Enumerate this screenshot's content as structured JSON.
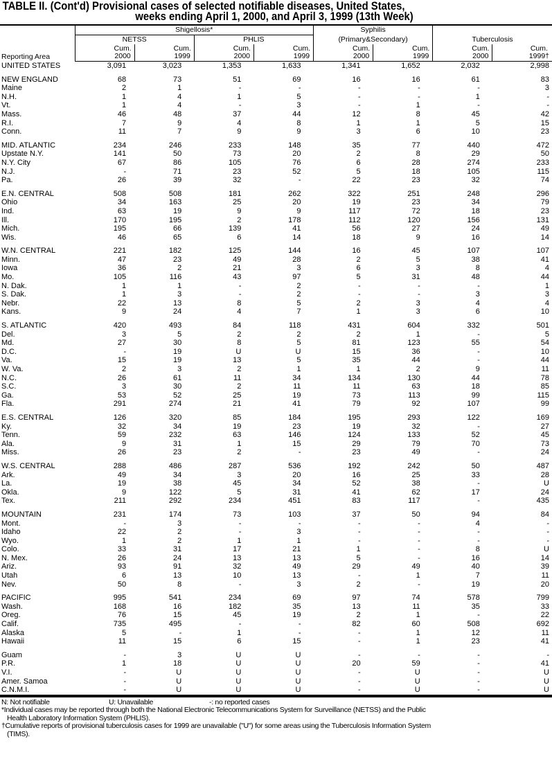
{
  "title": {
    "line1": "TABLE II. (Cont'd) Provisional cases of selected notifiable diseases, United States,",
    "line2": "weeks ending April 1, 2000, and April 3, 1999 (13th Week)"
  },
  "header": {
    "reporting_area": "Reporting Area",
    "shigellosis": "Shigellosis*",
    "netss": "NETSS",
    "phlis": "PHLIS",
    "syphilis": "Syphilis",
    "syphilis_sub": "(Primary&Secondary)",
    "tuberculosis": "Tuberculosis",
    "cols": [
      {
        "cum": "Cum.",
        "year": "2000"
      },
      {
        "cum": "Cum.",
        "year": "1999"
      },
      {
        "cum": "Cum.",
        "year": "2000"
      },
      {
        "cum": "Cum.",
        "year": "1999"
      },
      {
        "cum": "Cum.",
        "year": "2000"
      },
      {
        "cum": "Cum.",
        "year": "1999"
      },
      {
        "cum": "Cum.",
        "year": "2000"
      },
      {
        "cum": "Cum.",
        "year": "1999†"
      }
    ]
  },
  "groups": [
    [
      [
        "UNITED STATES",
        "3,091",
        "3,023",
        "1,353",
        "1,633",
        "1,341",
        "1,652",
        "2,032",
        "2,998"
      ]
    ],
    [
      [
        "NEW ENGLAND",
        "68",
        "73",
        "51",
        "69",
        "16",
        "16",
        "61",
        "83"
      ],
      [
        "Maine",
        "2",
        "1",
        "-",
        "-",
        "-",
        "-",
        "-",
        "3"
      ],
      [
        "N.H.",
        "1",
        "4",
        "1",
        "5",
        "-",
        "-",
        "1",
        "-"
      ],
      [
        "Vt.",
        "1",
        "4",
        "-",
        "3",
        "-",
        "1",
        "-",
        "-"
      ],
      [
        "Mass.",
        "46",
        "48",
        "37",
        "44",
        "12",
        "8",
        "45",
        "42"
      ],
      [
        "R.I.",
        "7",
        "9",
        "4",
        "8",
        "1",
        "1",
        "5",
        "15"
      ],
      [
        "Conn.",
        "11",
        "7",
        "9",
        "9",
        "3",
        "6",
        "10",
        "23"
      ]
    ],
    [
      [
        "MID. ATLANTIC",
        "234",
        "246",
        "233",
        "148",
        "35",
        "77",
        "440",
        "472"
      ],
      [
        "Upstate N.Y.",
        "141",
        "50",
        "73",
        "20",
        "2",
        "8",
        "29",
        "50"
      ],
      [
        "N.Y. City",
        "67",
        "86",
        "105",
        "76",
        "6",
        "28",
        "274",
        "233"
      ],
      [
        "N.J.",
        "-",
        "71",
        "23",
        "52",
        "5",
        "18",
        "105",
        "115"
      ],
      [
        "Pa.",
        "26",
        "39",
        "32",
        "-",
        "22",
        "23",
        "32",
        "74"
      ]
    ],
    [
      [
        "E.N. CENTRAL",
        "508",
        "508",
        "181",
        "262",
        "322",
        "251",
        "248",
        "296"
      ],
      [
        "Ohio",
        "34",
        "163",
        "25",
        "20",
        "19",
        "23",
        "34",
        "79"
      ],
      [
        "Ind.",
        "63",
        "19",
        "9",
        "9",
        "117",
        "72",
        "18",
        "23"
      ],
      [
        "Ill.",
        "170",
        "195",
        "2",
        "178",
        "112",
        "120",
        "156",
        "131"
      ],
      [
        "Mich.",
        "195",
        "66",
        "139",
        "41",
        "56",
        "27",
        "24",
        "49"
      ],
      [
        "Wis.",
        "46",
        "65",
        "6",
        "14",
        "18",
        "9",
        "16",
        "14"
      ]
    ],
    [
      [
        "W.N. CENTRAL",
        "221",
        "182",
        "125",
        "144",
        "16",
        "45",
        "107",
        "107"
      ],
      [
        "Minn.",
        "47",
        "23",
        "49",
        "28",
        "2",
        "5",
        "38",
        "41"
      ],
      [
        "Iowa",
        "36",
        "2",
        "21",
        "3",
        "6",
        "3",
        "8",
        "4"
      ],
      [
        "Mo.",
        "105",
        "116",
        "43",
        "97",
        "5",
        "31",
        "48",
        "44"
      ],
      [
        "N. Dak.",
        "1",
        "1",
        "-",
        "2",
        "-",
        "-",
        "-",
        "1"
      ],
      [
        "S. Dak.",
        "1",
        "3",
        "-",
        "2",
        "-",
        "-",
        "3",
        "3"
      ],
      [
        "Nebr.",
        "22",
        "13",
        "8",
        "5",
        "2",
        "3",
        "4",
        "4"
      ],
      [
        "Kans.",
        "9",
        "24",
        "4",
        "7",
        "1",
        "3",
        "6",
        "10"
      ]
    ],
    [
      [
        "S. ATLANTIC",
        "420",
        "493",
        "84",
        "118",
        "431",
        "604",
        "332",
        "501"
      ],
      [
        "Del.",
        "3",
        "5",
        "2",
        "2",
        "2",
        "1",
        "-",
        "5"
      ],
      [
        "Md.",
        "27",
        "30",
        "8",
        "5",
        "81",
        "123",
        "55",
        "54"
      ],
      [
        "D.C.",
        "-",
        "19",
        "U",
        "U",
        "15",
        "36",
        "-",
        "10"
      ],
      [
        "Va.",
        "15",
        "19",
        "13",
        "5",
        "35",
        "44",
        "-",
        "44"
      ],
      [
        "W. Va.",
        "2",
        "3",
        "2",
        "1",
        "1",
        "2",
        "9",
        "11"
      ],
      [
        "N.C.",
        "26",
        "61",
        "11",
        "34",
        "134",
        "130",
        "44",
        "78"
      ],
      [
        "S.C.",
        "3",
        "30",
        "2",
        "11",
        "11",
        "63",
        "18",
        "85"
      ],
      [
        "Ga.",
        "53",
        "52",
        "25",
        "19",
        "73",
        "113",
        "99",
        "115"
      ],
      [
        "Fla.",
        "291",
        "274",
        "21",
        "41",
        "79",
        "92",
        "107",
        "99"
      ]
    ],
    [
      [
        "E.S. CENTRAL",
        "126",
        "320",
        "85",
        "184",
        "195",
        "293",
        "122",
        "169"
      ],
      [
        "Ky.",
        "32",
        "34",
        "19",
        "23",
        "19",
        "32",
        "-",
        "27"
      ],
      [
        "Tenn.",
        "59",
        "232",
        "63",
        "146",
        "124",
        "133",
        "52",
        "45"
      ],
      [
        "Ala.",
        "9",
        "31",
        "1",
        "15",
        "29",
        "79",
        "70",
        "73"
      ],
      [
        "Miss.",
        "26",
        "23",
        "2",
        "-",
        "23",
        "49",
        "-",
        "24"
      ]
    ],
    [
      [
        "W.S. CENTRAL",
        "288",
        "486",
        "287",
        "536",
        "192",
        "242",
        "50",
        "487"
      ],
      [
        "Ark.",
        "49",
        "34",
        "3",
        "20",
        "16",
        "25",
        "33",
        "28"
      ],
      [
        "La.",
        "19",
        "38",
        "45",
        "34",
        "52",
        "38",
        "-",
        "U"
      ],
      [
        "Okla.",
        "9",
        "122",
        "5",
        "31",
        "41",
        "62",
        "17",
        "24"
      ],
      [
        "Tex.",
        "211",
        "292",
        "234",
        "451",
        "83",
        "117",
        "-",
        "435"
      ]
    ],
    [
      [
        "MOUNTAIN",
        "231",
        "174",
        "73",
        "103",
        "37",
        "50",
        "94",
        "84"
      ],
      [
        "Mont.",
        "-",
        "3",
        "-",
        "-",
        "-",
        "-",
        "4",
        "-"
      ],
      [
        "Idaho",
        "22",
        "2",
        "-",
        "3",
        "-",
        "-",
        "-",
        "-"
      ],
      [
        "Wyo.",
        "1",
        "2",
        "1",
        "1",
        "-",
        "-",
        "-",
        "-"
      ],
      [
        "Colo.",
        "33",
        "31",
        "17",
        "21",
        "1",
        "-",
        "8",
        "U"
      ],
      [
        "N. Mex.",
        "26",
        "24",
        "13",
        "13",
        "5",
        "-",
        "16",
        "14"
      ],
      [
        "Ariz.",
        "93",
        "91",
        "32",
        "49",
        "29",
        "49",
        "40",
        "39"
      ],
      [
        "Utah",
        "6",
        "13",
        "10",
        "13",
        "-",
        "1",
        "7",
        "11"
      ],
      [
        "Nev.",
        "50",
        "8",
        "-",
        "3",
        "2",
        "-",
        "19",
        "20"
      ]
    ],
    [
      [
        "PACIFIC",
        "995",
        "541",
        "234",
        "69",
        "97",
        "74",
        "578",
        "799"
      ],
      [
        "Wash.",
        "168",
        "16",
        "182",
        "35",
        "13",
        "11",
        "35",
        "33"
      ],
      [
        "Oreg.",
        "76",
        "15",
        "45",
        "19",
        "2",
        "1",
        "-",
        "22"
      ],
      [
        "Calif.",
        "735",
        "495",
        "-",
        "-",
        "82",
        "60",
        "508",
        "692"
      ],
      [
        "Alaska",
        "5",
        "-",
        "1",
        "-",
        "-",
        "1",
        "12",
        "11"
      ],
      [
        "Hawaii",
        "11",
        "15",
        "6",
        "15",
        "-",
        "1",
        "23",
        "41"
      ]
    ],
    [
      [
        "Guam",
        "-",
        "3",
        "U",
        "U",
        "-",
        "-",
        "-",
        "-"
      ],
      [
        "P.R.",
        "1",
        "18",
        "U",
        "U",
        "20",
        "59",
        "-",
        "41"
      ],
      [
        "V.I.",
        "-",
        "U",
        "U",
        "U",
        "-",
        "U",
        "-",
        "U"
      ],
      [
        "Amer. Samoa",
        "-",
        "U",
        "U",
        "U",
        "-",
        "U",
        "-",
        "U"
      ],
      [
        "C.N.M.I.",
        "-",
        "U",
        "U",
        "U",
        "-",
        "U",
        "-",
        "U"
      ]
    ]
  ],
  "notes": {
    "n": "N: Not notifiable",
    "u": "U: Unavailable",
    "dash": "-: no reported cases",
    "star1": "*Individual cases may be reported through both the National Electronic Telecommunications System for Surveillance (NETSS) and the Public",
    "star2": "Health Laboratory Information System (PHLIS).",
    "dag1": "†Cumulative reports of provisional tuberculosis cases for 1999 are unavailable (\"U\") for some areas using the Tuberculosis Information System",
    "dag2": "(TIMS)."
  }
}
